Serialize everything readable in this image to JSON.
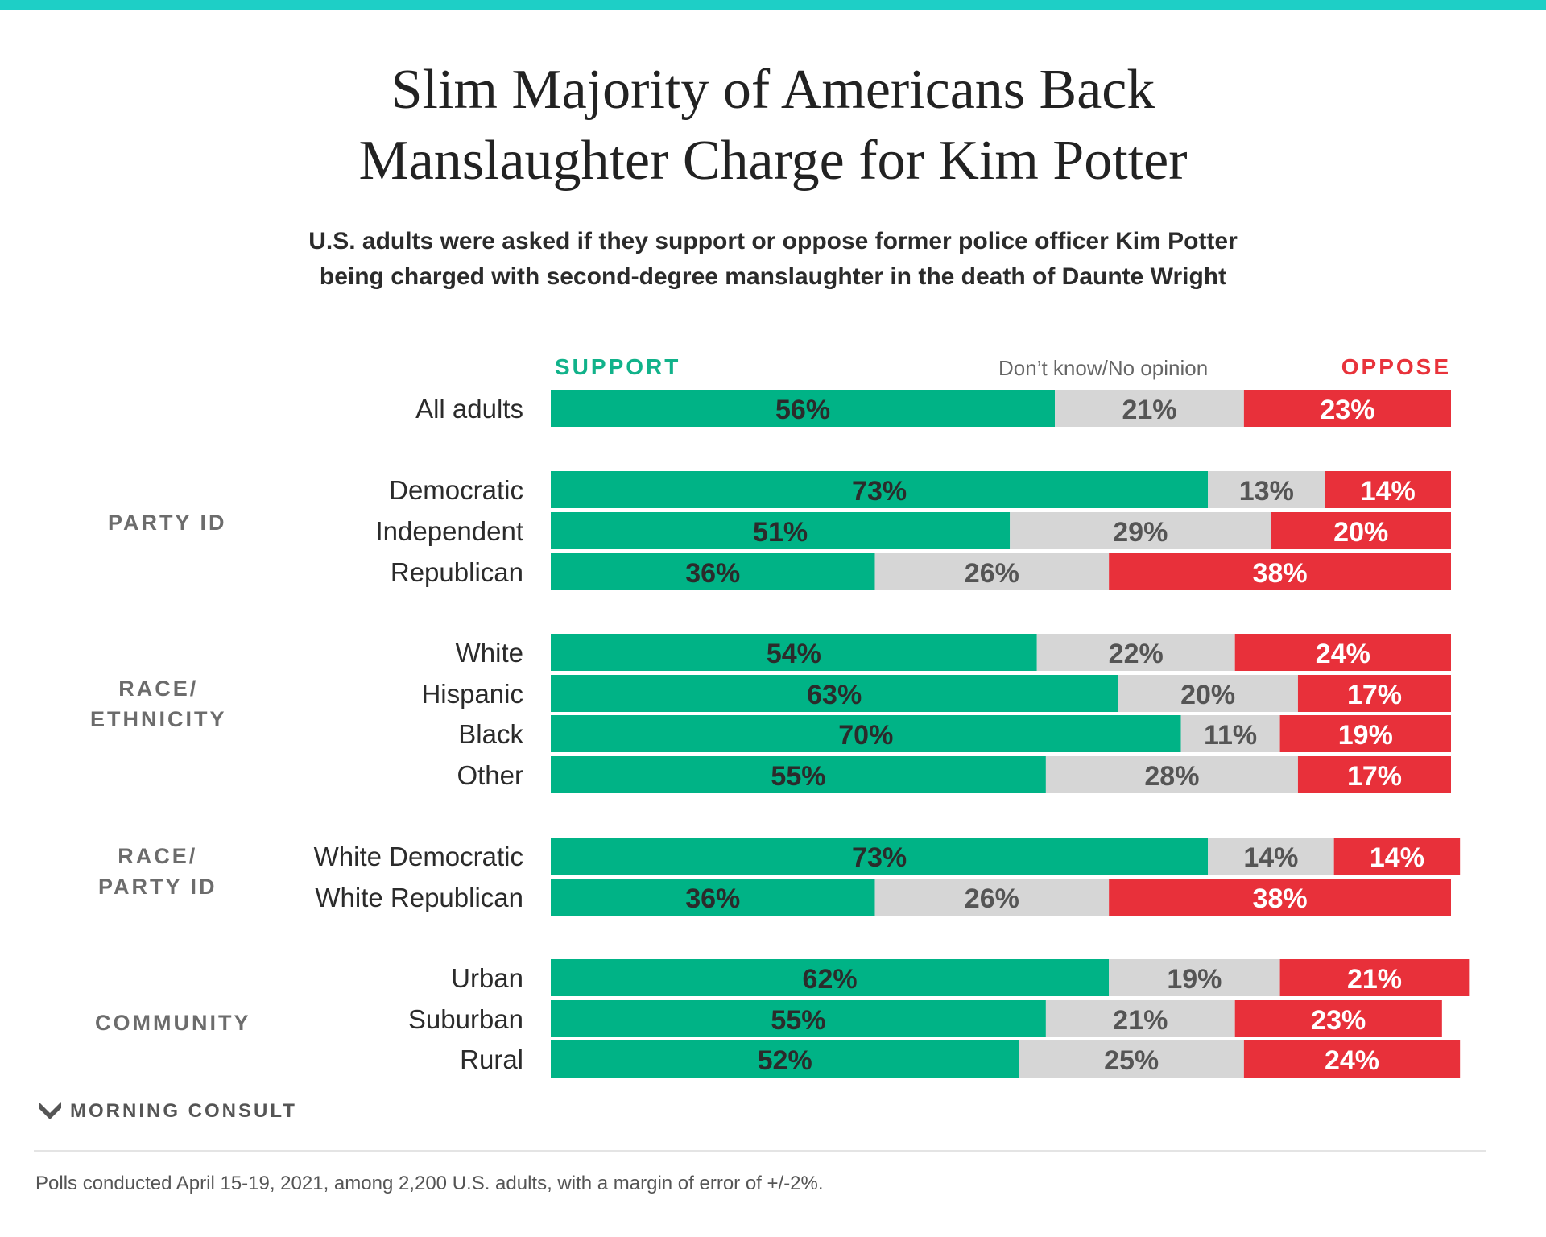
{
  "header": {
    "title_line1": "Slim Majority of Americans Back",
    "title_line2": "Manslaughter Charge for Kim Potter",
    "subtitle_line1": "U.S. adults were asked if they support or oppose former police officer Kim Potter",
    "subtitle_line2": "being charged with second-degree manslaughter in the death of Daunte Wright"
  },
  "legend": {
    "support": "SUPPORT",
    "dont_know": "Don’t know/No opinion",
    "oppose": "OPPOSE"
  },
  "groups": {
    "party_id": [
      "PARTY ID"
    ],
    "race_ethnicity": [
      "RACE/",
      "ETHNICITY"
    ],
    "race_party_id": [
      "RACE/",
      "PARTY ID"
    ],
    "community": [
      "COMMUNITY"
    ]
  },
  "colors": {
    "support": "#00b386",
    "dont_know": "#d6d6d6",
    "oppose": "#e8303a",
    "accent_bar": "#1ecfc6"
  },
  "chart_data": {
    "type": "bar",
    "orientation": "horizontal",
    "stacked": true,
    "unit": "%",
    "categories": [
      "All adults",
      "Democratic",
      "Independent",
      "Republican",
      "White",
      "Hispanic",
      "Black",
      "Other",
      "White Democratic",
      "White Republican",
      "Urban",
      "Suburban",
      "Rural"
    ],
    "series": [
      {
        "name": "SUPPORT",
        "values": [
          56,
          73,
          51,
          36,
          54,
          63,
          70,
          55,
          73,
          36,
          62,
          55,
          52
        ]
      },
      {
        "name": "Don’t know/No opinion",
        "values": [
          21,
          13,
          29,
          26,
          22,
          20,
          11,
          28,
          14,
          26,
          19,
          21,
          25
        ]
      },
      {
        "name": "OPPOSE",
        "values": [
          23,
          14,
          20,
          38,
          24,
          17,
          19,
          17,
          14,
          38,
          21,
          23,
          24
        ]
      }
    ],
    "xlim": [
      0,
      100
    ],
    "legend_position": "top"
  },
  "footer": {
    "brand": "MORNING CONSULT",
    "note": "Polls conducted April 15-19, 2021, among 2,200 U.S. adults, with a margin of error of +/-2%."
  }
}
